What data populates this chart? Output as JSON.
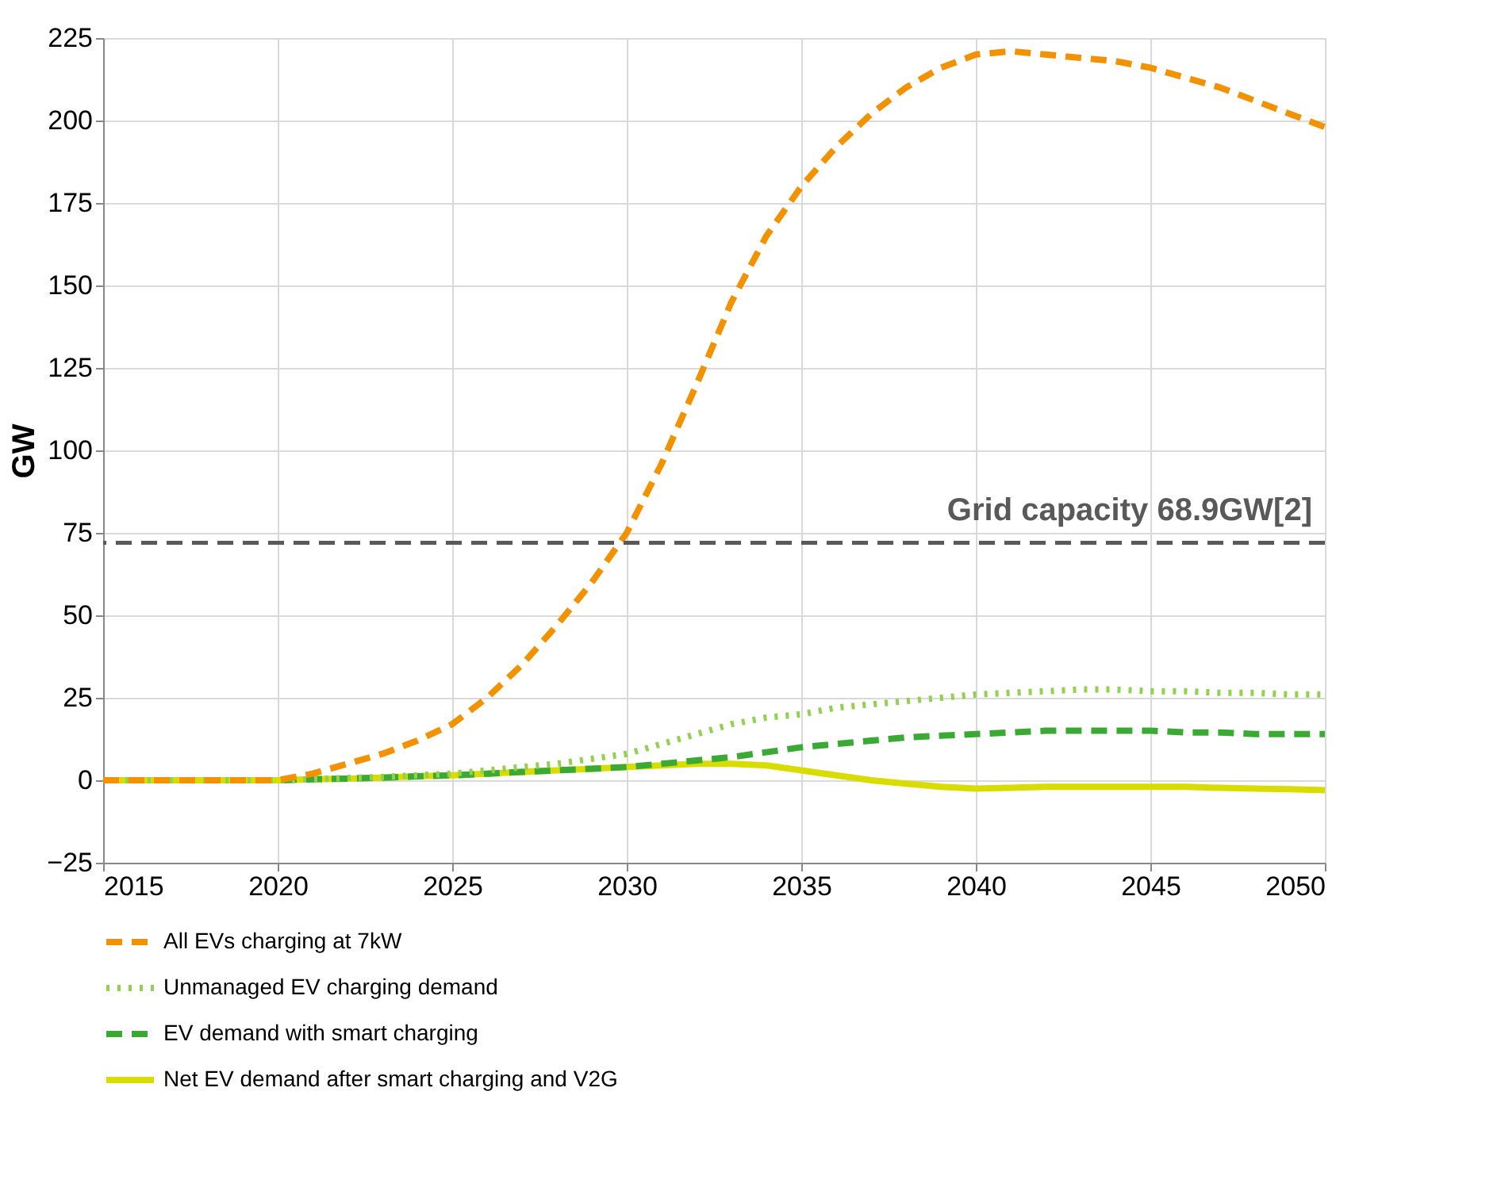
{
  "chart_data": {
    "type": "line",
    "ylabel": "GW",
    "xlim": [
      2015,
      2050
    ],
    "xticks": [
      2015,
      2020,
      2025,
      2030,
      2035,
      2040,
      2045,
      2050
    ],
    "ylim": [
      -25,
      225
    ],
    "yticks": [
      -25,
      0,
      25,
      50,
      75,
      100,
      125,
      150,
      175,
      200,
      225
    ],
    "grid": true,
    "legend": "bottom",
    "marker": "none",
    "x": [
      2015,
      2017,
      2020,
      2021,
      2022,
      2023,
      2024,
      2025,
      2026,
      2027,
      2028,
      2029,
      2030,
      2031,
      2032,
      2033,
      2034,
      2035,
      2036,
      2037,
      2038,
      2039,
      2040,
      2041,
      2042,
      2043,
      2044,
      2045,
      2046,
      2047,
      2048,
      2049,
      2050
    ],
    "series": [
      {
        "name": "All EVs charging at 7kW",
        "color": "#f39200",
        "line_style": "dashed",
        "values": [
          0,
          0,
          0,
          2,
          5,
          8,
          12,
          17,
          25,
          35,
          47,
          60,
          75,
          96,
          120,
          145,
          165,
          180,
          192,
          202,
          210,
          216,
          220,
          221,
          220,
          219,
          218,
          216,
          213,
          210,
          206,
          202,
          198
        ]
      },
      {
        "name": "Unmanaged EV charging demand",
        "color": "#92d050",
        "line_style": "dotted",
        "values": [
          0,
          0,
          0,
          0.3,
          0.7,
          1,
          1.5,
          2,
          3,
          4,
          5,
          6.5,
          8,
          11,
          14,
          17,
          19,
          20,
          22,
          23,
          24,
          25,
          26,
          26.5,
          27,
          27.5,
          27.5,
          27,
          27,
          26.5,
          26.5,
          26,
          26
        ]
      },
      {
        "name": "EV demand with smart charging",
        "color": "#3aaa35",
        "line_style": "dashed",
        "values": [
          0,
          0,
          0,
          0.3,
          0.5,
          0.8,
          1.2,
          1.5,
          2,
          2.5,
          3,
          3.5,
          4,
          5,
          6,
          7,
          8.5,
          10,
          11,
          12,
          13,
          13.5,
          14,
          14.5,
          15,
          15,
          15,
          15,
          14.5,
          14.5,
          14,
          14,
          14
        ]
      },
      {
        "name": "Net EV demand after smart charging and V2G",
        "color": "#d9dc00",
        "line_style": "solid",
        "values": [
          0,
          0,
          0,
          0.3,
          0.5,
          0.8,
          1.2,
          1.5,
          2,
          2.5,
          3,
          3.5,
          4,
          4.5,
          5,
          5,
          4.5,
          3,
          1.5,
          0,
          -1,
          -2,
          -2.5,
          -2.3,
          -2,
          -2,
          -2,
          -2,
          -2,
          -2.3,
          -2.5,
          -2.7,
          -3
        ]
      }
    ],
    "ref_lines": [
      {
        "axis": "y",
        "value": 72,
        "label": "Grid capacity 68.9GW[2]",
        "color": "#595959",
        "line_style": "dashed"
      }
    ]
  }
}
